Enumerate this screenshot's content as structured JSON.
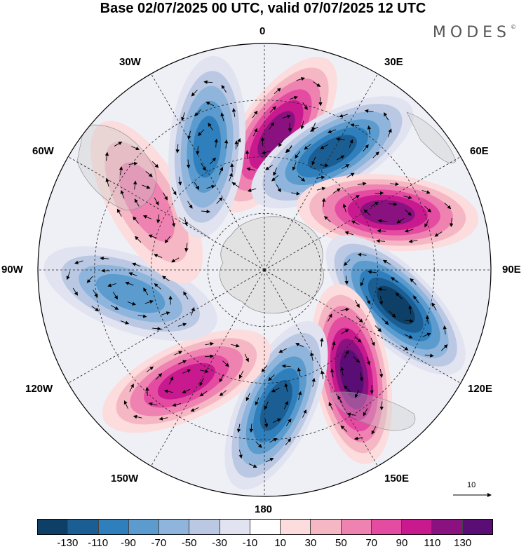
{
  "title": "Base 02/07/2025 00 UTC, valid 07/07/2025 12 UTC",
  "logo": "MODES",
  "logo_mark": "©",
  "projection_labels": {
    "n0": "0",
    "n30e": "30E",
    "n60e": "60E",
    "n90e": "90E",
    "n120e": "120E",
    "n150e": "150E",
    "n180": "180",
    "n150w": "150W",
    "n120w": "120W",
    "n90w": "90W",
    "n60w": "60W",
    "n30w": "30W"
  },
  "reference_vector": "10",
  "colorbar": {
    "colors": [
      "#0e3f66",
      "#1b5e93",
      "#2f7fbd",
      "#5b9bcd",
      "#8fb5dc",
      "#bac8e3",
      "#e1e3f1",
      "#ffffff",
      "#fcdcdc",
      "#f6b7c4",
      "#ee82b0",
      "#e44ca2",
      "#c8198e",
      "#8a1280",
      "#5b0d76"
    ],
    "ticks": [
      "-130",
      "-110",
      "-90",
      "-70",
      "-50",
      "-30",
      "-10",
      "10",
      "30",
      "50",
      "70",
      "90",
      "110",
      "130"
    ]
  },
  "anomaly_lobes": [
    {
      "sign": "positive",
      "level": 90,
      "lon": 5
    },
    {
      "sign": "negative",
      "level": -90,
      "lon": 30
    },
    {
      "sign": "positive",
      "level": 90,
      "lon": 65
    },
    {
      "sign": "negative",
      "level": -110,
      "lon": 105
    },
    {
      "sign": "positive",
      "level": 110,
      "lon": 140
    },
    {
      "sign": "negative",
      "level": -90,
      "lon": 175
    },
    {
      "sign": "positive",
      "level": 70,
      "lon": -145
    },
    {
      "sign": "negative",
      "level": -50,
      "lon": -100
    },
    {
      "sign": "positive",
      "level": 30,
      "lon": -60
    },
    {
      "sign": "negative",
      "level": -70,
      "lon": -25
    }
  ]
}
